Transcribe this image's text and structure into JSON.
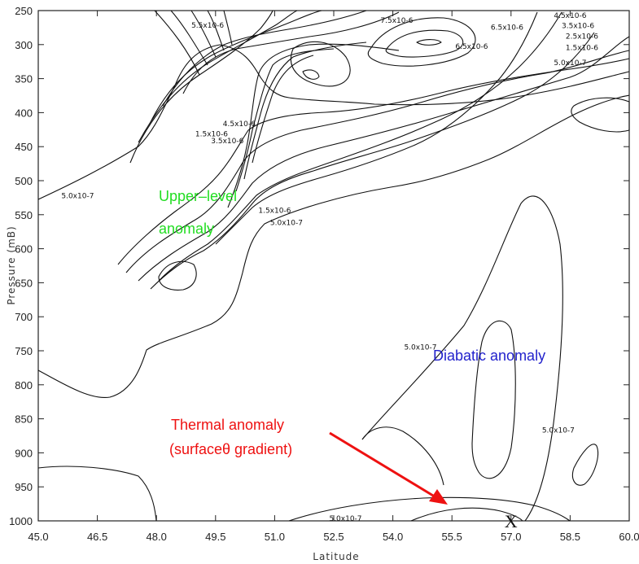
{
  "chart_data": {
    "type": "contour",
    "title": "",
    "xlabel": "Latitude",
    "ylabel": "Pressure (mB)",
    "xlim": [
      45.0,
      60.0
    ],
    "ylim": [
      1000,
      250
    ],
    "x_ticks": [
      "45.0",
      "46.5",
      "48.0",
      "49.5",
      "51.0",
      "52.5",
      "54.0",
      "55.5",
      "57.0",
      "58.5",
      "60.0"
    ],
    "y_ticks": [
      "250",
      "300",
      "350",
      "400",
      "450",
      "500",
      "550",
      "600",
      "650",
      "700",
      "750",
      "800",
      "850",
      "900",
      "950",
      "1000"
    ],
    "contour_levels": [
      "5.0x10-7",
      "1.5x10-6",
      "2.5x10-6",
      "3.5x10-6",
      "4.5x10-6",
      "5.5x10-6",
      "6.5x10-6",
      "7.5x10-6"
    ],
    "contour_labels": [
      {
        "text": "5.5x10-6",
        "lat": 49.3,
        "p": 275
      },
      {
        "text": "7.5x10-6",
        "lat": 54.1,
        "p": 268
      },
      {
        "text": "6.5x10-6",
        "lat": 56.0,
        "p": 306
      },
      {
        "text": "6.5x10-6",
        "lat": 56.9,
        "p": 278
      },
      {
        "text": "4.5x10-6",
        "lat": 58.5,
        "p": 261
      },
      {
        "text": "3.5x10-6",
        "lat": 58.7,
        "p": 276
      },
      {
        "text": "2.5x10-6",
        "lat": 58.8,
        "p": 291
      },
      {
        "text": "1.5x10-6",
        "lat": 58.8,
        "p": 308
      },
      {
        "text": "5.0x10-7",
        "lat": 58.5,
        "p": 330
      },
      {
        "text": "1.5x10-6",
        "lat": 49.4,
        "p": 435
      },
      {
        "text": "3.5x10-6",
        "lat": 49.8,
        "p": 445
      },
      {
        "text": "4.5x10-6",
        "lat": 50.1,
        "p": 420
      },
      {
        "text": "5.0x10-7",
        "lat": 46.0,
        "p": 526
      },
      {
        "text": "1.5x10-6",
        "lat": 51.0,
        "p": 547
      },
      {
        "text": "5.0x10-7",
        "lat": 51.3,
        "p": 565
      },
      {
        "text": "5.0x10-7",
        "lat": 54.7,
        "p": 748
      },
      {
        "text": "5.0x10-7",
        "lat": 58.2,
        "p": 870
      },
      {
        "text": "5.0x10-7",
        "lat": 52.8,
        "p": 1000
      }
    ],
    "annotations": [
      {
        "text": "Upper–level",
        "color": "#22dd22"
      },
      {
        "text": "anomaly",
        "color": "#22dd22"
      },
      {
        "text": "Diabatic anomaly",
        "color": "#2222cc"
      },
      {
        "text": "Thermal anomaly",
        "color": "#ee1111"
      },
      {
        "text": "(surfaceθ gradient)",
        "color": "#ee1111"
      }
    ],
    "marker": {
      "text": "X",
      "lat": 57.0,
      "p": 995
    }
  }
}
